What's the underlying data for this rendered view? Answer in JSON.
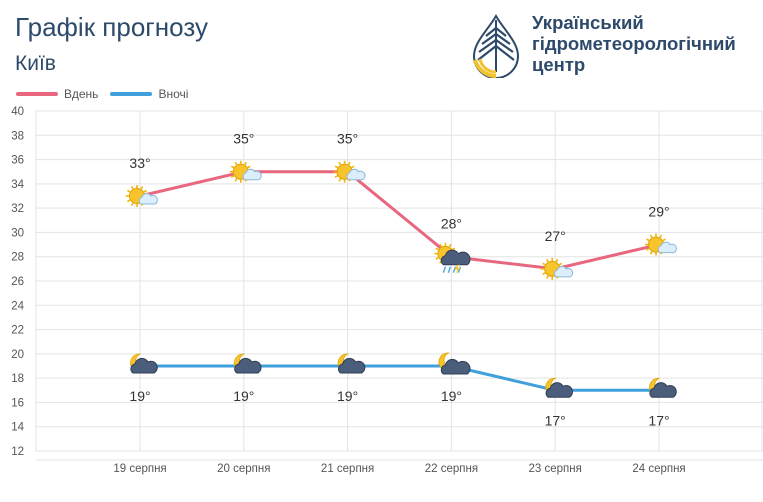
{
  "header": {
    "title": "Графік прогнозу",
    "city": "Київ"
  },
  "logo": {
    "line1": "Український",
    "line2": "гідрометеорологічний",
    "line3": "центр"
  },
  "colors": {
    "day": "#e8677f",
    "night": "#3fa0dc",
    "heading": "#2d4a6a"
  },
  "chart_data": {
    "type": "line",
    "categories": [
      "19 серпня",
      "20 серпня",
      "21 серпня",
      "22 серпня",
      "23 серпня",
      "24 серпня"
    ],
    "series": [
      {
        "name": "Вдень",
        "values": [
          33,
          35,
          35,
          28,
          27,
          29
        ],
        "labels": [
          "33°",
          "35°",
          "35°",
          "28°",
          "27°",
          "29°"
        ],
        "icons": [
          "sun-cloud-icon",
          "sun-cloud-icon",
          "sun-cloud-icon",
          "sun-storm-rain-icon",
          "sun-cloud-icon",
          "sun-cloud-icon"
        ]
      },
      {
        "name": "Вночі",
        "values": [
          19,
          19,
          19,
          19,
          17,
          17
        ],
        "labels": [
          "19°",
          "19°",
          "19°",
          "19°",
          "17°",
          "17°"
        ],
        "icons": [
          "moon-cloud-icon",
          "moon-cloud-icon",
          "moon-cloud-icon",
          "moon-dark-cloud-icon",
          "moon-cloud-icon",
          "moon-cloud-icon"
        ]
      }
    ],
    "ylim": [
      12,
      40
    ],
    "yticks": [
      "12",
      "14",
      "16",
      "18",
      "20",
      "22",
      "24",
      "26",
      "28",
      "30",
      "32",
      "34",
      "36",
      "38",
      "40"
    ],
    "grid": true,
    "legend": "top-left"
  }
}
